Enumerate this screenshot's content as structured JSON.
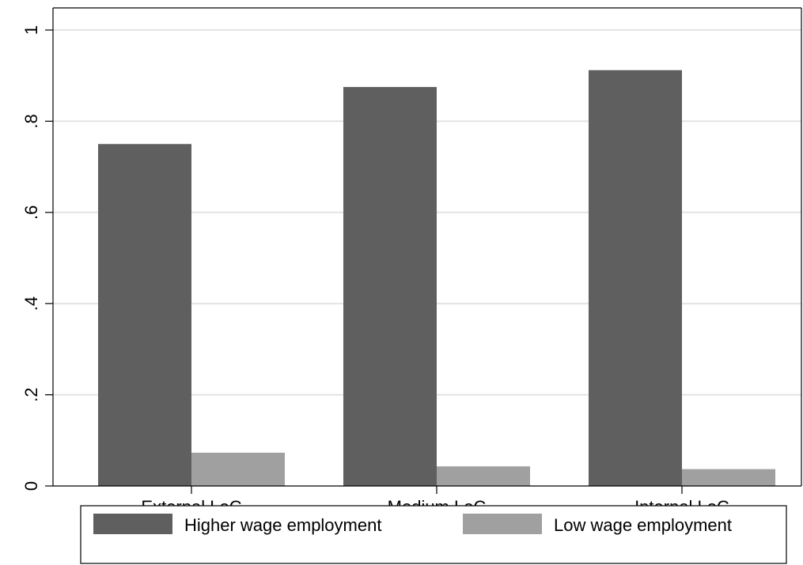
{
  "chart_data": {
    "type": "bar",
    "categories": [
      "External LoC",
      "Medium LoC",
      "Internal LoC"
    ],
    "series": [
      {
        "name": "Higher wage employment",
        "color": "#5f5f5f",
        "values": [
          0.75,
          0.875,
          0.912
        ]
      },
      {
        "name": "Low wage employment",
        "color": "#a0a0a0",
        "values": [
          0.073,
          0.043,
          0.037
        ]
      }
    ],
    "ylim": [
      0,
      1
    ],
    "yticks": [
      0,
      0.2,
      0.4,
      0.6,
      0.8,
      1
    ],
    "ytick_labels": [
      "0",
      ".2",
      ".4",
      ".6",
      ".8",
      "1"
    ],
    "grid": true,
    "legend_position": "bottom"
  }
}
